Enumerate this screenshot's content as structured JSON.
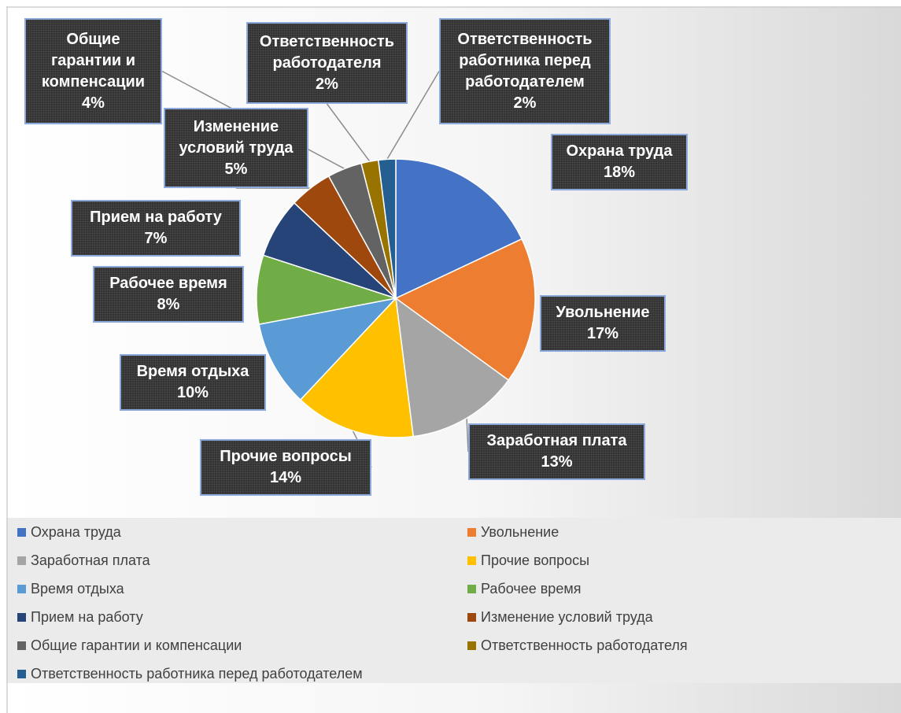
{
  "chart_data": {
    "type": "pie",
    "title": "",
    "legend_position": "bottom",
    "slices": [
      {
        "name": "Охрана труда",
        "label": "Охрана труда",
        "value": 18,
        "value_label": "18%",
        "color": "#4472c4"
      },
      {
        "name": "Увольнение",
        "label": "Увольнение",
        "value": 17,
        "value_label": "17%",
        "color": "#ed7d31"
      },
      {
        "name": "Заработная плата",
        "label": "Заработная плата",
        "value": 13,
        "value_label": "13%",
        "color": "#a5a5a5"
      },
      {
        "name": "Прочие вопросы",
        "label": "Прочие вопросы",
        "value": 14,
        "value_label": "14%",
        "color": "#ffc000"
      },
      {
        "name": "Время отдыха",
        "label": "Время отдыха",
        "value": 10,
        "value_label": "10%",
        "color": "#5b9bd5"
      },
      {
        "name": "Рабочее время",
        "label": "Рабочее время",
        "value": 8,
        "value_label": "8%",
        "color": "#70ad47"
      },
      {
        "name": "Прием на работу",
        "label": "Прием на работу",
        "value": 7,
        "value_label": "7%",
        "color": "#264478"
      },
      {
        "name": "Изменение условий труда",
        "label": "Изменение\nусловий труда",
        "value": 5,
        "value_label": "5%",
        "color": "#9e480e"
      },
      {
        "name": "Общие гарантии и компенсации",
        "label": "Общие\nгарантии и\nкомпенсации",
        "value": 4,
        "value_label": "4%",
        "color": "#636363"
      },
      {
        "name": "Ответственность работодателя",
        "label": "Ответственность\nработодателя",
        "value": 2,
        "value_label": "2%",
        "color": "#997300"
      },
      {
        "name": "Ответственность работника перед работодателем",
        "label": "Ответственность\nработника перед\nработодателем",
        "value": 2,
        "value_label": "2%",
        "color": "#255e91"
      }
    ]
  }
}
